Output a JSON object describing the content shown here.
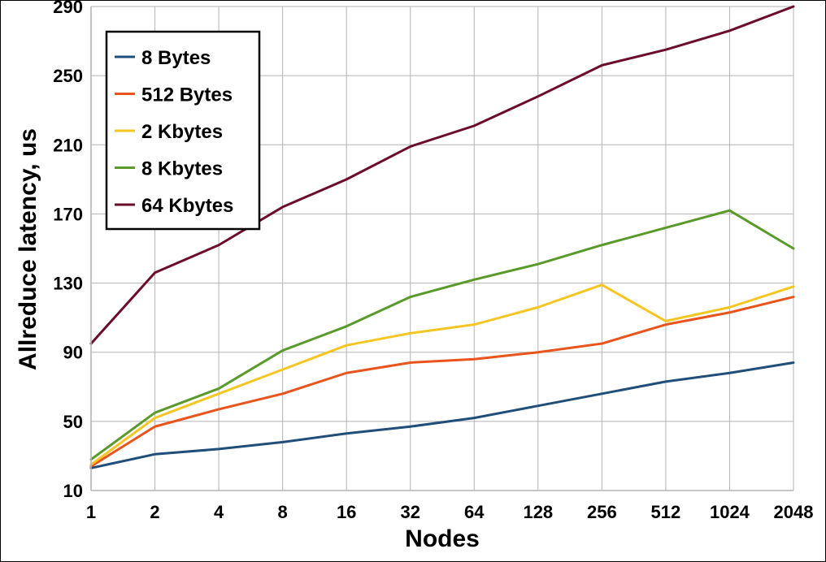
{
  "chart_data": {
    "type": "line",
    "xlabel": "Nodes",
    "ylabel": "Allreduce latency, us",
    "categories": [
      "1",
      "2",
      "4",
      "8",
      "16",
      "32",
      "64",
      "128",
      "256",
      "512",
      "1024",
      "2048"
    ],
    "yticks": [
      10,
      50,
      90,
      130,
      170,
      210,
      250,
      290
    ],
    "ylim": [
      10,
      290
    ],
    "grid": true,
    "legend_position": "top-left",
    "series": [
      {
        "name": "8 Bytes",
        "color": "#1f4e79",
        "values": [
          23,
          31,
          34,
          38,
          43,
          47,
          52,
          59,
          66,
          73,
          78,
          84
        ]
      },
      {
        "name": "512 Bytes",
        "color": "#e8541c",
        "values": [
          24,
          47,
          57,
          66,
          78,
          84,
          86,
          90,
          95,
          106,
          113,
          122
        ]
      },
      {
        "name": "2 Kbytes",
        "color": "#f5c623",
        "values": [
          25,
          52,
          66,
          80,
          94,
          101,
          106,
          116,
          129,
          108,
          116,
          128
        ]
      },
      {
        "name": "8 Kbytes",
        "color": "#5a9a2a",
        "values": [
          28,
          55,
          69,
          91,
          105,
          122,
          132,
          141,
          152,
          162,
          172,
          150
        ]
      },
      {
        "name": "64 Kbytes",
        "color": "#6b0c2a",
        "values": [
          95,
          136,
          152,
          174,
          190,
          209,
          221,
          238,
          256,
          265,
          276,
          290
        ]
      }
    ]
  }
}
